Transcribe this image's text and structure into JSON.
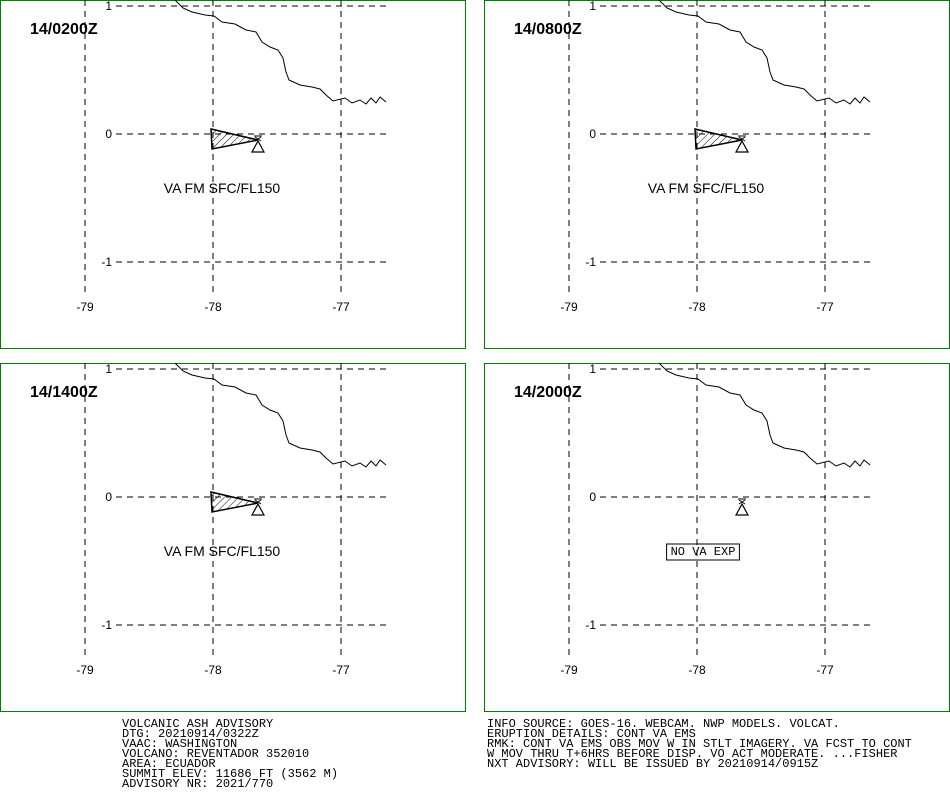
{
  "panels": [
    {
      "time": "14/0200Z",
      "label": "VA FM SFC/FL150",
      "ash_cloud": true
    },
    {
      "time": "14/0800Z",
      "label": "VA FM SFC/FL150",
      "ash_cloud": true
    },
    {
      "time": "14/1400Z",
      "label": "VA FM SFC/FL150",
      "ash_cloud": true
    },
    {
      "time": "14/2000Z",
      "label": "NO VA EXP",
      "ash_cloud": false
    }
  ],
  "grid": {
    "lat_ticks": [
      1,
      0,
      -1
    ],
    "lon_ticks": [
      -79,
      -78,
      -77
    ]
  },
  "advisory_left": [
    "VOLCANIC ASH ADVISORY",
    "DTG: 20210914/0322Z",
    "VAAC: WASHINGTON",
    "VOLCANO: REVENTADOR 352010",
    "AREA: ECUADOR",
    "SUMMIT ELEV: 11686 FT (3562 M)",
    "ADVISORY NR: 2021/770"
  ],
  "advisory_right": [
    "INFO SOURCE: GOES-16. WEBCAM. NWP MODELS. VOLCAT.",
    "ERUPTION DETAILS: CONT VA EMS",
    "RMK: CONT VA EMS OBS MOV W IN STLT IMAGERY. VA FCST TO CONT",
    "W MOV THRU T+6HRS BEFORE DISP. VO ACT MODERATE. ...FISHER",
    "NXT ADVISORY: WILL BE ISSUED BY 20210914/0915Z"
  ]
}
